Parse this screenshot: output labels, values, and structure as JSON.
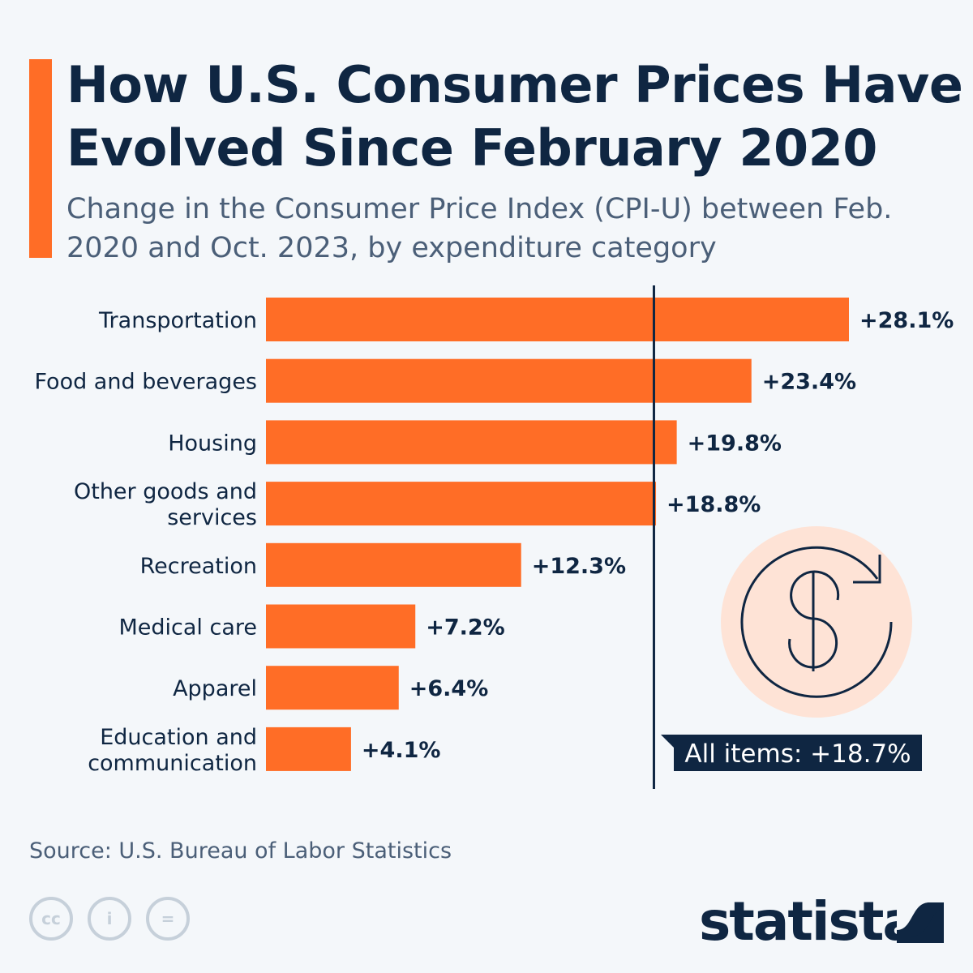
{
  "chart_data": {
    "type": "bar",
    "orientation": "horizontal",
    "title": "How U.S. Consumer Prices Have Evolved Since February 2020",
    "subtitle": "Change in the Consumer Price Index (CPI-U) between Feb. 2020 and Oct. 2023, by expenditure category",
    "categories": [
      "Transportation",
      "Food and beverages",
      "Housing",
      "Other goods and services",
      "Recreation",
      "Medical care",
      "Apparel",
      "Education and communication"
    ],
    "category_lines": [
      [
        "Transportation"
      ],
      [
        "Food and beverages"
      ],
      [
        "Housing"
      ],
      [
        "Other goods and",
        "services"
      ],
      [
        "Recreation"
      ],
      [
        "Medical care"
      ],
      [
        "Apparel"
      ],
      [
        "Education and",
        "communication"
      ]
    ],
    "values": [
      28.1,
      23.4,
      19.8,
      18.8,
      12.3,
      7.2,
      6.4,
      4.1
    ],
    "data_labels": [
      "+28.1%",
      "+23.4%",
      "+19.8%",
      "+18.8%",
      "+12.3%",
      "+7.2%",
      "+6.4%",
      "+4.1%"
    ],
    "reference_line": {
      "value": 18.7,
      "label": "All items: +18.7%"
    },
    "xlim": [
      0,
      28.1
    ],
    "grid": false,
    "bar_color": "#ff6d26",
    "line_color": "#0f2642"
  },
  "source": "Source: U.S. Bureau of Labor Statistics",
  "license_icons": [
    "cc-icon",
    "attribution-icon",
    "no-derivatives-icon"
  ],
  "brand": "statista"
}
